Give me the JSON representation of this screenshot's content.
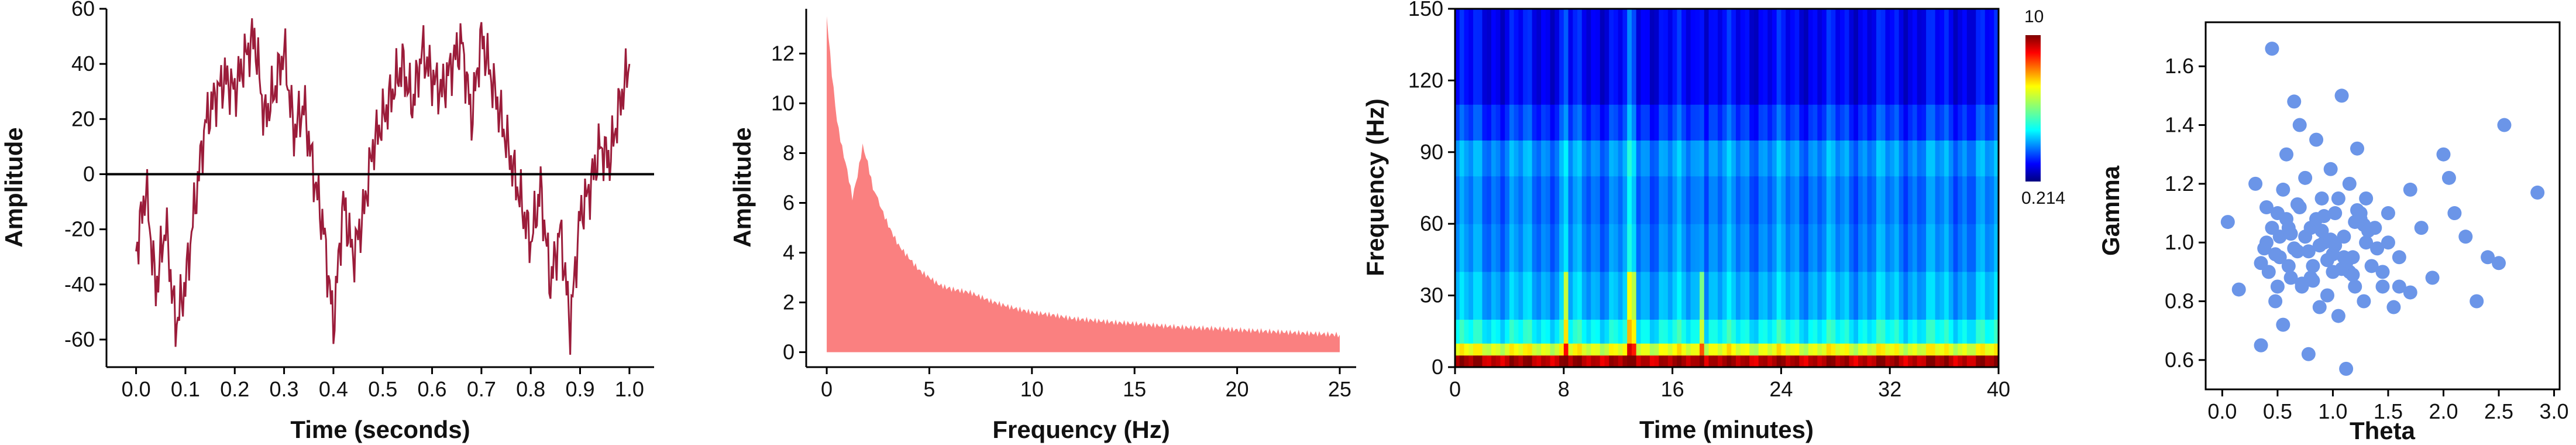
{
  "chart_data": [
    {
      "type": "line",
      "title": "",
      "xlabel": "Time (seconds)",
      "ylabel": "Amplitude",
      "xlim": [
        -0.06,
        1.05
      ],
      "ylim": [
        -70,
        60
      ],
      "xticks": [
        "0.0",
        "0.1",
        "0.2",
        "0.3",
        "0.4",
        "0.5",
        "0.6",
        "0.7",
        "0.8",
        "0.9",
        "1.0"
      ],
      "yticks": [
        "-60",
        "-40",
        "-20",
        "0",
        "20",
        "40",
        "60"
      ],
      "zero_line": true,
      "series": [
        {
          "color": "#9b1c3a",
          "x": [
            0.0,
            0.02,
            0.04,
            0.06,
            0.08,
            0.1,
            0.12,
            0.14,
            0.16,
            0.18,
            0.2,
            0.22,
            0.24,
            0.26,
            0.28,
            0.3,
            0.32,
            0.34,
            0.36,
            0.38,
            0.4,
            0.42,
            0.44,
            0.46,
            0.48,
            0.5,
            0.52,
            0.54,
            0.56,
            0.58,
            0.6,
            0.62,
            0.64,
            0.66,
            0.68,
            0.7,
            0.72,
            0.74,
            0.76,
            0.78,
            0.8,
            0.82,
            0.84,
            0.86,
            0.88,
            0.9,
            0.92,
            0.94,
            0.96,
            0.98,
            1.0
          ],
          "y": [
            -28,
            -5,
            -42,
            -18,
            -55,
            -40,
            -10,
            18,
            28,
            35,
            30,
            42,
            50,
            20,
            30,
            45,
            15,
            25,
            0,
            -20,
            -55,
            -10,
            -30,
            -15,
            10,
            20,
            30,
            40,
            25,
            45,
            35,
            30,
            40,
            48,
            20,
            50,
            35,
            20,
            5,
            -10,
            -25,
            -5,
            -40,
            -20,
            -55,
            -15,
            -5,
            10,
            5,
            25,
            40
          ]
        }
      ]
    },
    {
      "type": "area",
      "title": "",
      "xlabel": "Frequency (Hz)",
      "ylabel": "Amplitude",
      "xlim": [
        -1,
        25.8
      ],
      "ylim": [
        -0.6,
        13.8
      ],
      "xticks": [
        "0",
        "5",
        "10",
        "15",
        "20",
        "25"
      ],
      "yticks": [
        "0",
        "2",
        "4",
        "6",
        "8",
        "10",
        "12"
      ],
      "series": [
        {
          "color": "#fa8080",
          "x": [
            0,
            0.25,
            0.5,
            0.75,
            1,
            1.25,
            1.5,
            1.75,
            2,
            2.25,
            2.5,
            3,
            3.5,
            4,
            4.5,
            5,
            5.5,
            6,
            7,
            8,
            9,
            10,
            11,
            12,
            13,
            14,
            15,
            16,
            17,
            18,
            19,
            20,
            21,
            22,
            23,
            24,
            25
          ],
          "y": [
            13.5,
            11.2,
            9.3,
            8.2,
            7.3,
            6.2,
            7.1,
            8.3,
            7.6,
            6.6,
            6.1,
            5.1,
            4.3,
            3.8,
            3.3,
            3.0,
            2.7,
            2.55,
            2.4,
            2.05,
            1.8,
            1.6,
            1.5,
            1.35,
            1.28,
            1.2,
            1.15,
            1.08,
            1.02,
            0.98,
            0.95,
            0.9,
            0.86,
            0.82,
            0.78,
            0.74,
            0.7
          ]
        }
      ]
    },
    {
      "type": "heatmap",
      "title": "",
      "xlabel": "Time (minutes)",
      "ylabel": "Frequency (Hz)",
      "xlim": [
        0,
        40
      ],
      "ylim": [
        0,
        150
      ],
      "xticks": [
        "0",
        "8",
        "16",
        "24",
        "32",
        "40"
      ],
      "yticks": [
        "0",
        "30",
        "60",
        "90",
        "120",
        "150"
      ],
      "colorbar": {
        "max_label": "10",
        "min_label": "0.214",
        "colormap": "jet"
      },
      "description_values": {
        "bands_hz": [
          0,
          5,
          10,
          20,
          40,
          60,
          80,
          95,
          110,
          150
        ],
        "band_levels": [
          0.95,
          0.6,
          0.38,
          0.3,
          0.26,
          0.24,
          0.27,
          0.18,
          0.12
        ]
      }
    },
    {
      "type": "scatter",
      "title": "",
      "xlabel": "Theta",
      "ylabel": "Gamma",
      "xlim": [
        -0.15,
        3.05
      ],
      "ylim": [
        0.5,
        1.75
      ],
      "xticks": [
        "0.0",
        "0.5",
        "1.0",
        "1.5",
        "2.0",
        "2.5",
        "3.0"
      ],
      "yticks": [
        "0.6",
        "0.8",
        "1.0",
        "1.2",
        "1.4",
        "1.6"
      ],
      "series": [
        {
          "color": "#6b95e8",
          "x": [
            0.05,
            0.15,
            0.3,
            0.35,
            0.4,
            0.42,
            0.45,
            0.48,
            0.5,
            0.52,
            0.55,
            0.58,
            0.6,
            0.62,
            0.65,
            0.68,
            0.7,
            0.72,
            0.75,
            0.78,
            0.8,
            0.82,
            0.85,
            0.88,
            0.9,
            0.92,
            0.95,
            0.98,
            1.0,
            1.02,
            1.05,
            1.08,
            1.1,
            1.12,
            1.15,
            1.18,
            1.2,
            1.22,
            1.25,
            1.28,
            1.3,
            1.35,
            1.4,
            1.45,
            1.5,
            1.55,
            1.6,
            1.7,
            1.8,
            1.9,
            2.0,
            2.1,
            2.2,
            2.3,
            2.5,
            2.55,
            2.85,
            0.45,
            0.38,
            0.6,
            0.7,
            0.85,
            1.0,
            1.15,
            1.3,
            0.5,
            0.55,
            0.75,
            0.95,
            1.05,
            1.2,
            0.4,
            0.65,
            0.8,
            0.9,
            1.1,
            1.25,
            1.45,
            0.35,
            0.58,
            0.78,
            0.98,
            1.18,
            1.38,
            1.6,
            0.48,
            0.68,
            0.88,
            1.08,
            1.28,
            1.5,
            0.52,
            0.72,
            0.92,
            1.12,
            1.32,
            1.7,
            2.05,
            2.4,
            0.62,
            0.82,
            1.02,
            1.22
          ],
          "y": [
            1.07,
            0.84,
            1.2,
            0.65,
            1.0,
            0.9,
            1.66,
            0.8,
            1.1,
            0.95,
            0.72,
            1.3,
            1.05,
            0.88,
            1.48,
            0.97,
            1.4,
            0.85,
            1.22,
            0.62,
            1.05,
            0.92,
            1.35,
            0.78,
            1.15,
            1.0,
            0.82,
            1.25,
            0.9,
            1.1,
            0.75,
            1.5,
            1.02,
            0.57,
            1.2,
            0.95,
            0.85,
            1.32,
            1.08,
            0.8,
            1.15,
            0.92,
            0.98,
            0.85,
            1.1,
            0.78,
            0.95,
            1.18,
            1.05,
            0.88,
            1.3,
            1.1,
            1.02,
            0.8,
            0.93,
            1.4,
            1.17,
            1.05,
            0.98,
            0.92,
            1.12,
            1.08,
            0.96,
            0.9,
            1.0,
            0.85,
            1.18,
            1.02,
            0.94,
            1.15,
            1.07,
            1.12,
            0.98,
            0.88,
            1.04,
            0.95,
            1.1,
            0.9,
            0.93,
            1.08,
            0.97,
            1.01,
            0.89,
            1.05,
            0.85,
            0.96,
            1.13,
            0.99,
            0.91,
            1.06,
            1.0,
            1.02,
            0.86,
            1.09,
            0.93,
            1.04,
            0.83,
            1.22,
            0.95,
            1.03,
            0.87,
            0.99,
            1.11
          ]
        }
      ]
    }
  ]
}
